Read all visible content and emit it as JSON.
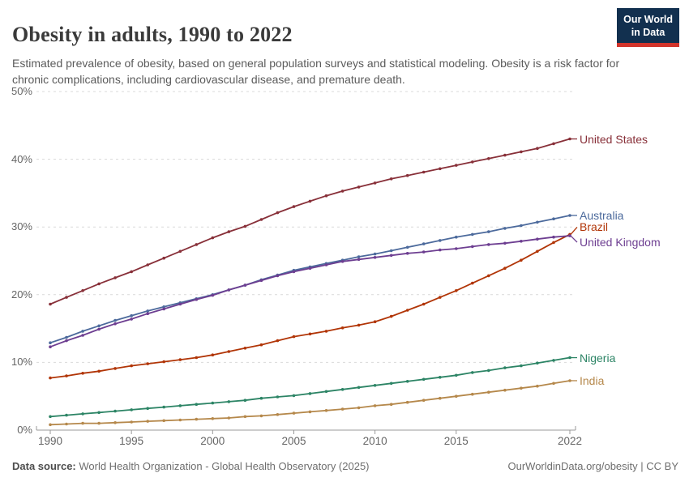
{
  "header": {
    "title": "Obesity in adults, 1990 to 2022",
    "subtitle": "Estimated prevalence of obesity, based on general population surveys and statistical modeling. Obesity is a risk factor for chronic complications, including cardiovascular disease, and premature death."
  },
  "logo": {
    "line1": "Our World",
    "line2": "in Data",
    "bg_color": "#12304F",
    "stripe_color": "#D2342B"
  },
  "chart_data": {
    "type": "line",
    "title": "Obesity in adults, 1990 to 2022",
    "xlabel": "",
    "ylabel": "",
    "x_start": 1990,
    "x_end": 2022,
    "xlim": [
      1990,
      2022
    ],
    "ylim": [
      0,
      50
    ],
    "x_ticks": [
      1990,
      1995,
      2000,
      2005,
      2010,
      2015,
      2022
    ],
    "y_ticks": [
      0,
      10,
      20,
      30,
      40,
      50
    ],
    "y_tick_suffix": "%",
    "grid": "horizontal dashed",
    "legend_position": "labels at right edge of lines",
    "marker": "point every year",
    "series": [
      {
        "name": "United States",
        "color": "#883039",
        "label_dy": 0,
        "values": [
          18.6,
          19.6,
          20.6,
          21.6,
          22.5,
          23.4,
          24.4,
          25.4,
          26.4,
          27.4,
          28.4,
          29.3,
          30.1,
          31.1,
          32.1,
          33.0,
          33.8,
          34.6,
          35.3,
          35.9,
          36.5,
          37.1,
          37.6,
          38.1,
          38.6,
          39.1,
          39.6,
          40.1,
          40.6,
          41.1,
          41.6,
          42.3,
          43.0
        ]
      },
      {
        "name": "Australia",
        "color": "#4C6A9C",
        "label_dy": 0,
        "values": [
          12.9,
          13.7,
          14.6,
          15.4,
          16.2,
          16.9,
          17.6,
          18.2,
          18.8,
          19.4,
          20.0,
          20.7,
          21.4,
          22.2,
          22.9,
          23.6,
          24.1,
          24.6,
          25.1,
          25.6,
          26.0,
          26.5,
          27.0,
          27.5,
          28.0,
          28.5,
          28.9,
          29.3,
          29.8,
          30.2,
          30.7,
          31.2,
          31.7
        ]
      },
      {
        "name": "Brazil",
        "color": "#B13507",
        "label_dy": -9,
        "values": [
          7.7,
          8.0,
          8.4,
          8.7,
          9.1,
          9.5,
          9.8,
          10.1,
          10.4,
          10.7,
          11.1,
          11.6,
          12.1,
          12.6,
          13.2,
          13.8,
          14.2,
          14.6,
          15.1,
          15.5,
          16.0,
          16.8,
          17.7,
          18.6,
          19.6,
          20.6,
          21.7,
          22.8,
          23.9,
          25.1,
          26.4,
          27.7,
          28.9
        ]
      },
      {
        "name": "United Kingdom",
        "color": "#6D3E91",
        "label_dy": 8,
        "values": [
          12.3,
          13.2,
          14.0,
          14.9,
          15.7,
          16.4,
          17.2,
          17.9,
          18.6,
          19.3,
          19.9,
          20.7,
          21.4,
          22.1,
          22.8,
          23.4,
          23.9,
          24.4,
          24.9,
          25.2,
          25.5,
          25.8,
          26.1,
          26.3,
          26.6,
          26.8,
          27.1,
          27.4,
          27.6,
          27.9,
          28.2,
          28.5,
          28.7
        ]
      },
      {
        "name": "Nigeria",
        "color": "#2C8465",
        "label_dy": 0,
        "values": [
          2.0,
          2.2,
          2.4,
          2.6,
          2.8,
          3.0,
          3.2,
          3.4,
          3.6,
          3.8,
          4.0,
          4.2,
          4.4,
          4.7,
          4.9,
          5.1,
          5.4,
          5.7,
          6.0,
          6.3,
          6.6,
          6.9,
          7.2,
          7.5,
          7.8,
          8.1,
          8.5,
          8.8,
          9.2,
          9.5,
          9.9,
          10.3,
          10.7
        ]
      },
      {
        "name": "India",
        "color": "#B5884B",
        "label_dy": 0,
        "values": [
          0.8,
          0.9,
          1.0,
          1.0,
          1.1,
          1.2,
          1.3,
          1.4,
          1.5,
          1.6,
          1.7,
          1.8,
          2.0,
          2.1,
          2.3,
          2.5,
          2.7,
          2.9,
          3.1,
          3.3,
          3.6,
          3.8,
          4.1,
          4.4,
          4.7,
          5.0,
          5.3,
          5.6,
          5.9,
          6.2,
          6.5,
          6.9,
          7.3
        ]
      }
    ],
    "style": {
      "grid_color": "#d9d9d9",
      "axis_color": "#999999",
      "tick_label_color": "#666666"
    }
  },
  "footer": {
    "datasource_label": "Data source:",
    "datasource_text": " World Health Organization - Global Health Observatory (2025)",
    "rights": "OurWorldinData.org/obesity | CC BY"
  }
}
